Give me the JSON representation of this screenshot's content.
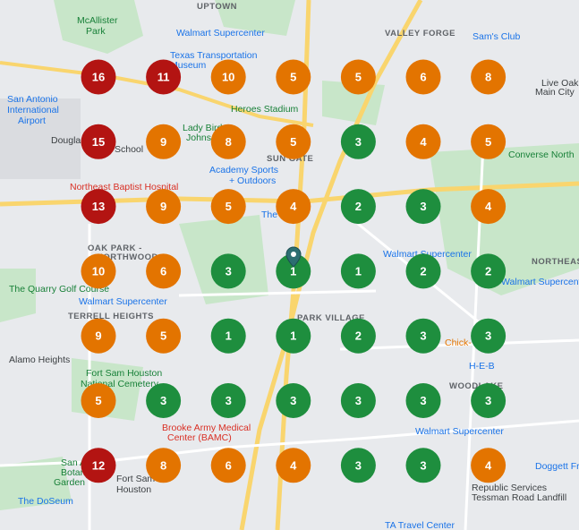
{
  "labels": [
    "UPTOWN",
    "McAllister",
    "Park",
    "Walmart Supercenter",
    "Texas Transportation",
    "Museum",
    "VALLEY FORGE",
    "Sam's Club",
    "San Antonio",
    "International",
    "Airport",
    "Heroes Stadium",
    "Lady Bird",
    "Johnson",
    "Douglas",
    "School",
    "Live Oak",
    "Main City",
    "SUN GATE",
    "Academy Sports",
    "+ Outdoors",
    "Northeast Baptist Hospital",
    "The Home",
    "Converse North",
    "OAK PARK -",
    "NORTHWOOD",
    "Walmart Supercenter",
    "The Quarry Golf Course",
    "Walmart Supercenter",
    "TERRELL HEIGHTS",
    "Walmart Supercenter",
    "NORTHEAS",
    "PARK VILLAGE",
    "Chick-",
    "Alamo Heights",
    "Fort Sam Houston",
    "National Cemetery",
    "H-E-B",
    "WOODLAKE",
    "Brooke Army Medical",
    "Center (BAMC)",
    "Walmart Supercenter",
    "Doggett Fr",
    "San Ant",
    "Botanic",
    "Garden",
    "Fort Sam",
    "Houston",
    "Republic Services",
    "Tessman Road Landfill",
    "The DoSeum",
    "TA Travel Center"
  ],
  "grid": {
    "rows": [
      {
        "values": [
          16,
          11,
          10,
          5,
          5,
          6,
          8
        ],
        "colors": [
          "#b31412",
          "#b31412",
          "#e37400",
          "#e37400",
          "#e37400",
          "#e37400",
          "#e37400"
        ]
      },
      {
        "values": [
          15,
          9,
          8,
          5,
          3,
          4,
          5
        ],
        "colors": [
          "#b31412",
          "#e37400",
          "#e37400",
          "#e37400",
          "#1e8e3e",
          "#e37400",
          "#e37400"
        ]
      },
      {
        "values": [
          13,
          9,
          5,
          4,
          2,
          3,
          4
        ],
        "colors": [
          "#b31412",
          "#e37400",
          "#e37400",
          "#e37400",
          "#1e8e3e",
          "#1e8e3e",
          "#e37400"
        ]
      },
      {
        "values": [
          10,
          6,
          3,
          1,
          1,
          2,
          2
        ],
        "colors": [
          "#e37400",
          "#e37400",
          "#1e8e3e",
          "#1e8e3e",
          "#1e8e3e",
          "#1e8e3e",
          "#1e8e3e"
        ]
      },
      {
        "values": [
          9,
          5,
          1,
          1,
          2,
          3,
          3
        ],
        "colors": [
          "#e37400",
          "#e37400",
          "#1e8e3e",
          "#1e8e3e",
          "#1e8e3e",
          "#1e8e3e",
          "#1e8e3e"
        ]
      },
      {
        "values": [
          5,
          3,
          3,
          3,
          3,
          3,
          3
        ],
        "colors": [
          "#e37400",
          "#1e8e3e",
          "#1e8e3e",
          "#1e8e3e",
          "#1e8e3e",
          "#1e8e3e",
          "#1e8e3e"
        ]
      },
      {
        "values": [
          12,
          8,
          6,
          4,
          3,
          3,
          4
        ],
        "colors": [
          "#b31412",
          "#e37400",
          "#e37400",
          "#e37400",
          "#1e8e3e",
          "#1e8e3e",
          "#e37400"
        ]
      }
    ]
  }
}
